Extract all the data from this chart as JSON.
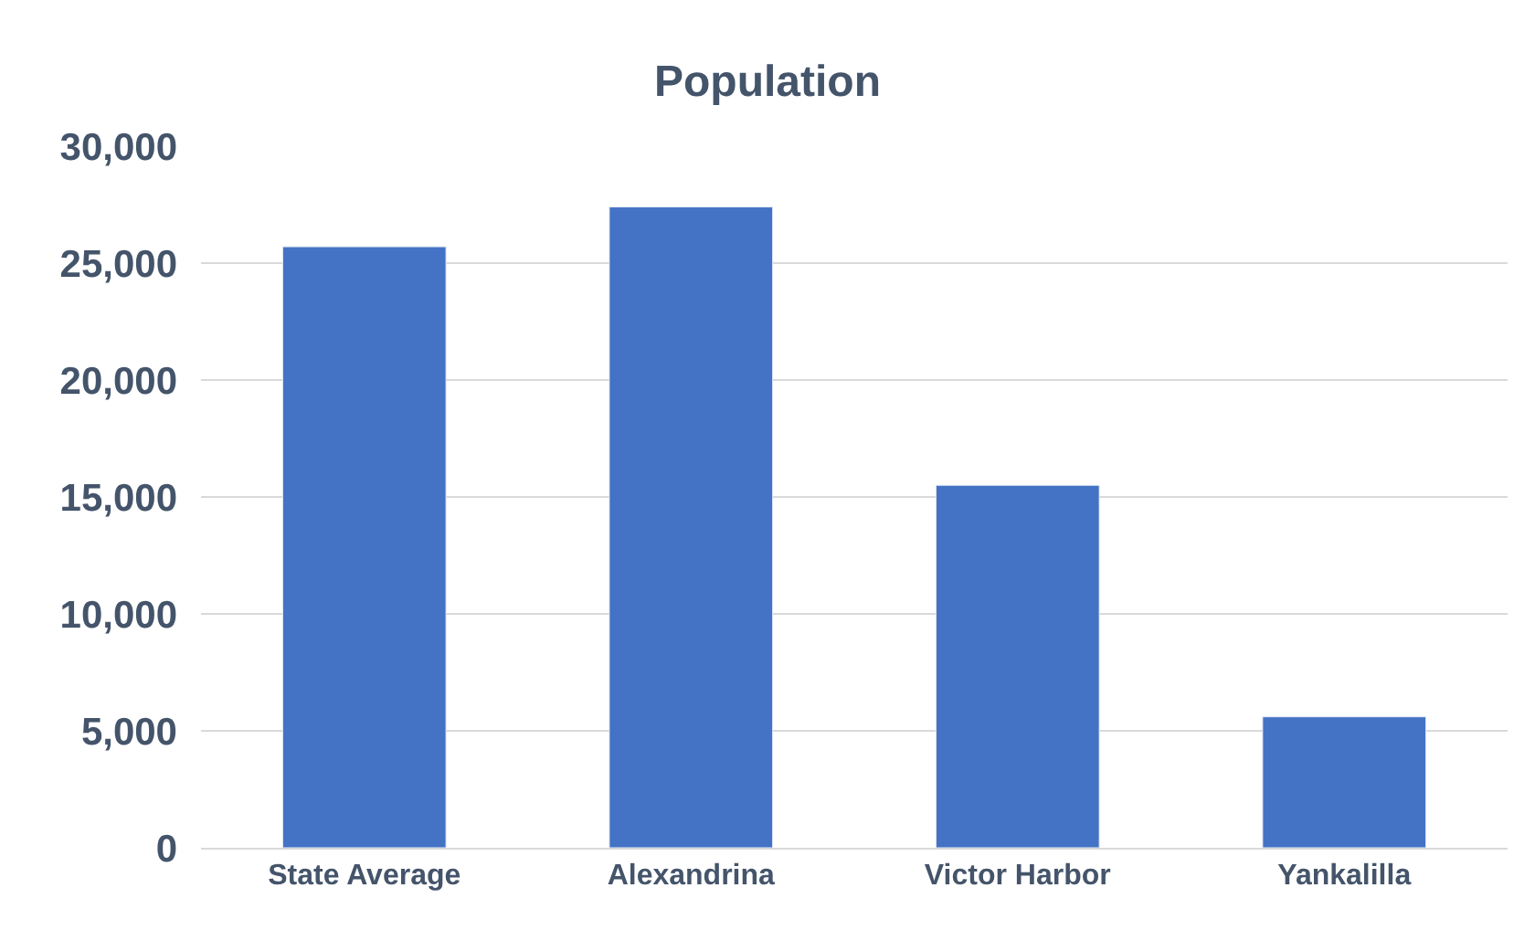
{
  "chart_data": {
    "type": "bar",
    "title": "Population",
    "categories": [
      "State Average",
      "Alexandrina",
      "Victor Harbor",
      "Yankalilla"
    ],
    "values": [
      25700,
      27400,
      15500,
      5600
    ],
    "color": "#4472c4",
    "ylim": [
      0,
      30000
    ],
    "yticks": [
      {
        "value": 0,
        "label": "0"
      },
      {
        "value": 5000,
        "label": "5,000"
      },
      {
        "value": 10000,
        "label": "10,000"
      },
      {
        "value": 15000,
        "label": "15,000"
      },
      {
        "value": 20000,
        "label": "20,000"
      },
      {
        "value": 25000,
        "label": "25,000"
      },
      {
        "value": 30000,
        "label": "30,000"
      }
    ],
    "grid": "y",
    "legend": false
  }
}
